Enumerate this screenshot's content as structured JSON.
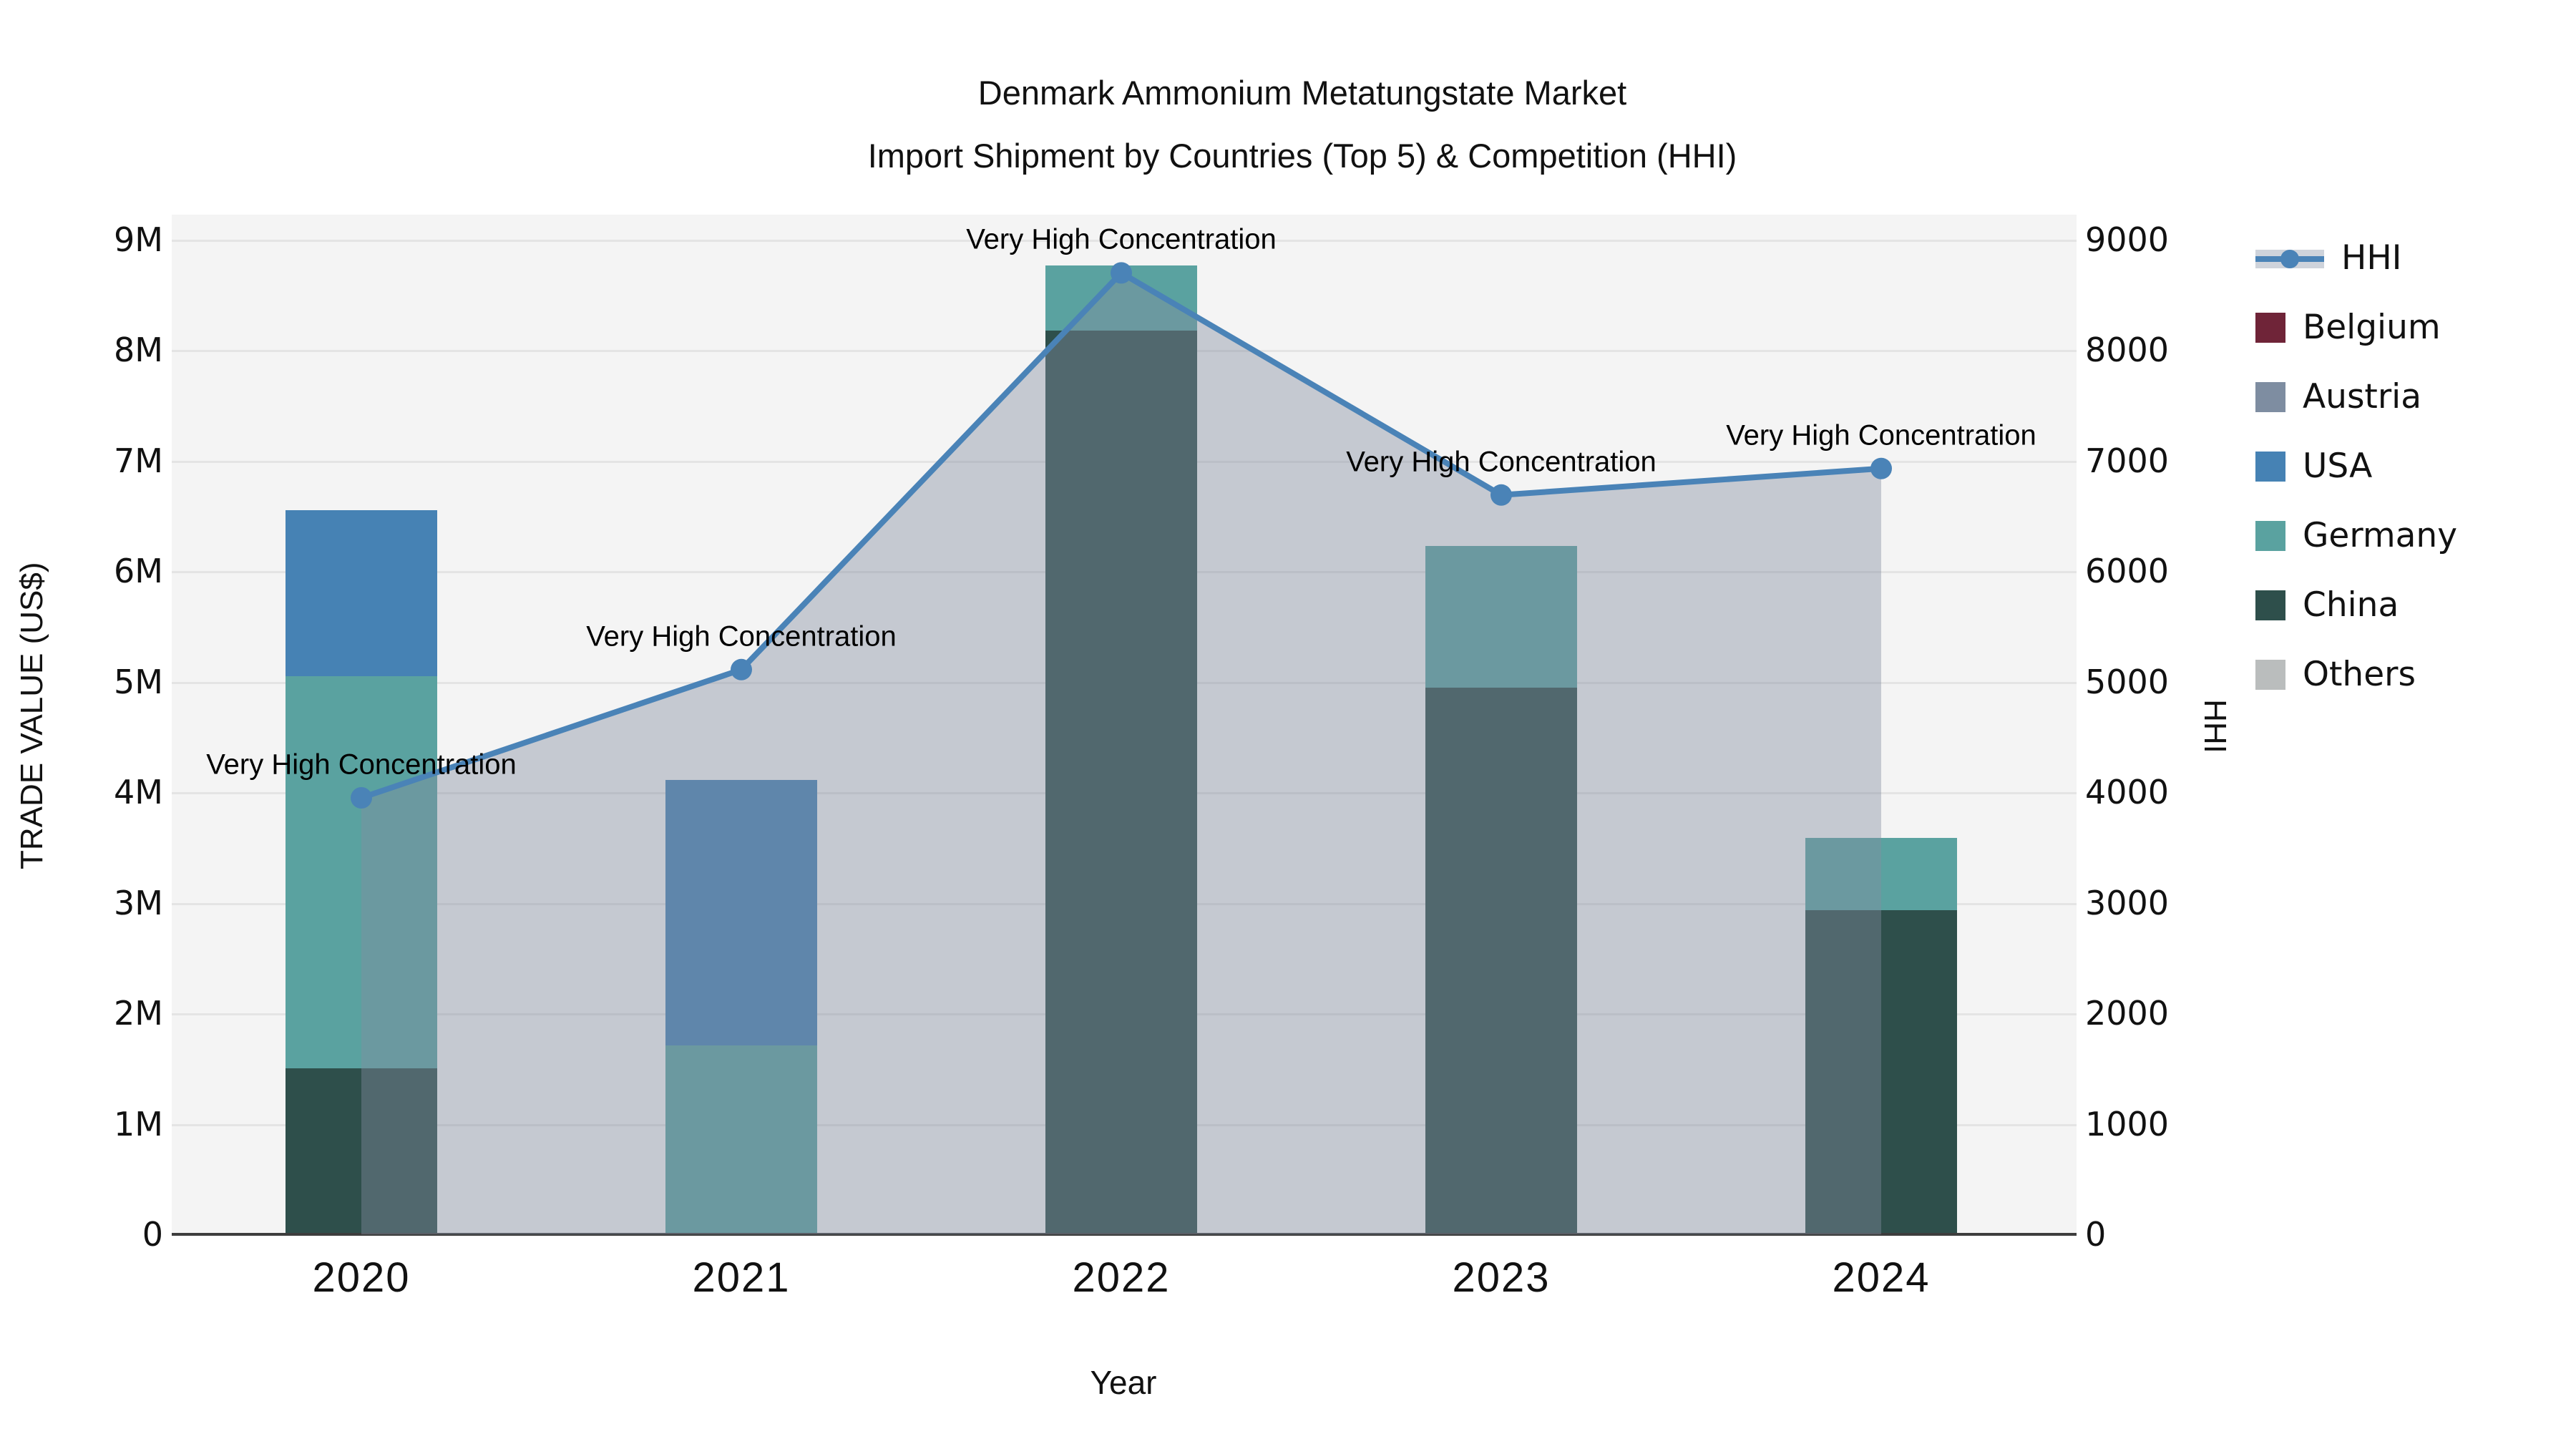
{
  "title": {
    "line1": "Denmark Ammonium Metatungstate Market",
    "line2": "Import Shipment by Countries (Top 5) & Competition (HHI)"
  },
  "axes": {
    "y_left_label": "TRADE VALUE (US$)",
    "y_right_label": "HHI",
    "x_label": "Year"
  },
  "chart_data": {
    "type": "bar",
    "subtype": "stacked-bars-with-line-and-area",
    "categories": [
      "2020",
      "2021",
      "2022",
      "2023",
      "2024"
    ],
    "stack_order": [
      "China",
      "Germany",
      "USA",
      "Austria",
      "Belgium",
      "Others"
    ],
    "series": [
      {
        "name": "Belgium",
        "color": "#6f2438",
        "values": [
          0,
          0,
          0,
          0,
          0
        ]
      },
      {
        "name": "Austria",
        "color": "#7e8da1",
        "values": [
          0,
          0,
          0,
          0,
          0
        ]
      },
      {
        "name": "USA",
        "color": "#4682b4",
        "values": [
          1.5,
          2.4,
          0,
          0,
          0
        ]
      },
      {
        "name": "Germany",
        "color": "#5aa2a0",
        "values": [
          3.55,
          1.71,
          0.59,
          1.28,
          0.66
        ]
      },
      {
        "name": "China",
        "color": "#2e4f4b",
        "values": [
          1.5,
          0,
          8.18,
          4.95,
          2.93
        ]
      },
      {
        "name": "Others",
        "color": "#babdbd",
        "values": [
          0,
          0,
          0,
          0,
          0
        ]
      }
    ],
    "bar_totals_musd": [
      6.55,
      4.11,
      8.77,
      6.23,
      3.59
    ],
    "hhi": {
      "name": "HHI",
      "color": "#4a83b7",
      "area_color": "rgba(130,140,160,0.42)",
      "values": [
        3950,
        5110,
        8700,
        6690,
        6930
      ]
    },
    "annotations": [
      "Very High Concentration",
      "Very High Concentration",
      "Very High Concentration",
      "Very High Concentration",
      "Very High Concentration"
    ],
    "y_left": {
      "min": 0,
      "max": 9,
      "unit": "M",
      "ticks": [
        "0",
        "1M",
        "2M",
        "3M",
        "4M",
        "5M",
        "6M",
        "7M",
        "8M",
        "9M"
      ]
    },
    "y_right": {
      "min": 0,
      "max": 9000,
      "ticks": [
        "0",
        "1000",
        "2000",
        "3000",
        "4000",
        "5000",
        "6000",
        "7000",
        "8000",
        "9000"
      ]
    },
    "legend": [
      "HHI",
      "Belgium",
      "Austria",
      "USA",
      "Germany",
      "China",
      "Others"
    ],
    "grid": "horizontal",
    "legend_position": "outside-top-right"
  }
}
